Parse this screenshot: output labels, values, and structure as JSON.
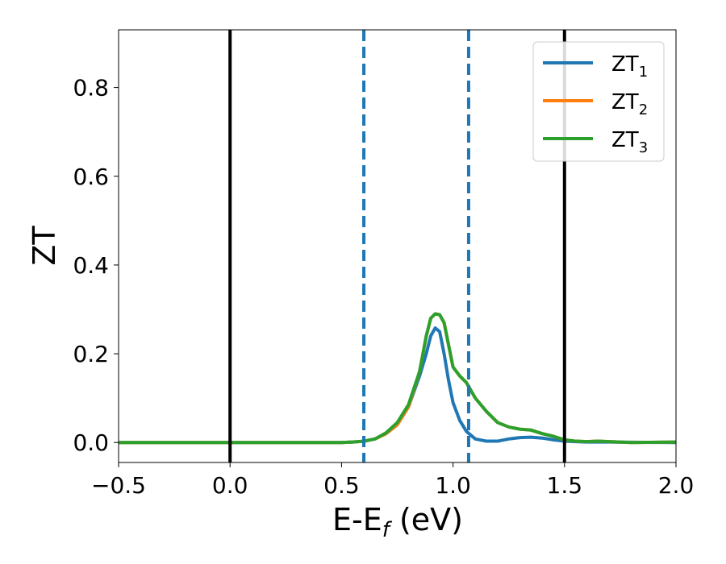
{
  "chart_data": {
    "type": "line",
    "xlabel_main": "E-E",
    "xlabel_sub": "f",
    "xlabel_tail": " (eV)",
    "ylabel": "ZT",
    "xlim": [
      -0.5,
      2.0
    ],
    "ylim": [
      -0.045,
      0.93
    ],
    "xticks": [
      -0.5,
      0.0,
      0.5,
      1.0,
      1.5,
      2.0
    ],
    "xtick_labels": [
      "−0.5",
      "0.0",
      "0.5",
      "1.0",
      "1.5",
      "2.0"
    ],
    "yticks": [
      0.0,
      0.2,
      0.4,
      0.6,
      0.8
    ],
    "ytick_labels": [
      "0.0",
      "0.2",
      "0.4",
      "0.6",
      "0.8"
    ],
    "grid": false,
    "legend_position": "top-right",
    "vlines": [
      {
        "x": 0.0,
        "style": "solid",
        "color": "#000000"
      },
      {
        "x": 1.5,
        "style": "solid",
        "color": "#000000"
      },
      {
        "x": 0.6,
        "style": "dashed",
        "color": "#1f77b4"
      },
      {
        "x": 1.07,
        "style": "dashed",
        "color": "#1f77b4"
      }
    ],
    "series": [
      {
        "name": "ZT",
        "sub": "1",
        "color": "#1f77b4",
        "points": [
          [
            -0.5,
            0.0
          ],
          [
            0.5,
            0.0
          ],
          [
            0.55,
            0.001
          ],
          [
            0.6,
            0.003
          ],
          [
            0.65,
            0.008
          ],
          [
            0.7,
            0.02
          ],
          [
            0.75,
            0.04
          ],
          [
            0.8,
            0.08
          ],
          [
            0.85,
            0.15
          ],
          [
            0.88,
            0.2
          ],
          [
            0.9,
            0.24
          ],
          [
            0.92,
            0.258
          ],
          [
            0.94,
            0.25
          ],
          [
            0.96,
            0.2
          ],
          [
            0.98,
            0.14
          ],
          [
            1.0,
            0.09
          ],
          [
            1.03,
            0.05
          ],
          [
            1.06,
            0.025
          ],
          [
            1.1,
            0.008
          ],
          [
            1.15,
            0.003
          ],
          [
            1.2,
            0.003
          ],
          [
            1.25,
            0.008
          ],
          [
            1.3,
            0.011
          ],
          [
            1.35,
            0.012
          ],
          [
            1.4,
            0.01
          ],
          [
            1.45,
            0.006
          ],
          [
            1.5,
            0.003
          ],
          [
            1.55,
            0.002
          ],
          [
            1.6,
            0.001
          ],
          [
            1.7,
            0.001
          ],
          [
            2.0,
            0.0
          ]
        ]
      },
      {
        "name": "ZT",
        "sub": "2",
        "color": "#ff7f0e",
        "points": [
          [
            -0.5,
            0.0
          ],
          [
            0.5,
            0.0
          ],
          [
            0.55,
            0.001
          ],
          [
            0.6,
            0.003
          ],
          [
            0.65,
            0.008
          ],
          [
            0.7,
            0.02
          ],
          [
            0.75,
            0.04
          ],
          [
            0.8,
            0.08
          ],
          [
            0.85,
            0.16
          ],
          [
            0.88,
            0.24
          ],
          [
            0.9,
            0.28
          ],
          [
            0.92,
            0.29
          ],
          [
            0.94,
            0.288
          ],
          [
            0.96,
            0.27
          ],
          [
            0.98,
            0.22
          ],
          [
            1.0,
            0.17
          ],
          [
            1.03,
            0.15
          ],
          [
            1.06,
            0.135
          ],
          [
            1.1,
            0.1
          ],
          [
            1.15,
            0.07
          ],
          [
            1.2,
            0.045
          ],
          [
            1.25,
            0.035
          ],
          [
            1.3,
            0.03
          ],
          [
            1.35,
            0.028
          ],
          [
            1.4,
            0.02
          ],
          [
            1.45,
            0.014
          ],
          [
            1.5,
            0.006
          ],
          [
            1.55,
            0.003
          ],
          [
            1.6,
            0.002
          ],
          [
            1.65,
            0.003
          ],
          [
            1.7,
            0.002
          ],
          [
            1.8,
            0.0
          ],
          [
            2.0,
            0.001
          ]
        ]
      },
      {
        "name": "ZT",
        "sub": "3",
        "color": "#2ca02c",
        "points": [
          [
            -0.5,
            0.0
          ],
          [
            0.5,
            0.0
          ],
          [
            0.55,
            0.001
          ],
          [
            0.6,
            0.003
          ],
          [
            0.65,
            0.008
          ],
          [
            0.7,
            0.022
          ],
          [
            0.75,
            0.045
          ],
          [
            0.8,
            0.085
          ],
          [
            0.85,
            0.16
          ],
          [
            0.88,
            0.24
          ],
          [
            0.9,
            0.28
          ],
          [
            0.92,
            0.29
          ],
          [
            0.94,
            0.288
          ],
          [
            0.96,
            0.27
          ],
          [
            0.98,
            0.22
          ],
          [
            1.0,
            0.17
          ],
          [
            1.03,
            0.15
          ],
          [
            1.06,
            0.135
          ],
          [
            1.1,
            0.1
          ],
          [
            1.15,
            0.07
          ],
          [
            1.2,
            0.045
          ],
          [
            1.25,
            0.035
          ],
          [
            1.3,
            0.03
          ],
          [
            1.35,
            0.028
          ],
          [
            1.4,
            0.02
          ],
          [
            1.45,
            0.014
          ],
          [
            1.5,
            0.006
          ],
          [
            1.55,
            0.003
          ],
          [
            1.6,
            0.002
          ],
          [
            1.65,
            0.003
          ],
          [
            1.7,
            0.002
          ],
          [
            1.8,
            0.0
          ],
          [
            2.0,
            0.001
          ]
        ]
      }
    ]
  }
}
